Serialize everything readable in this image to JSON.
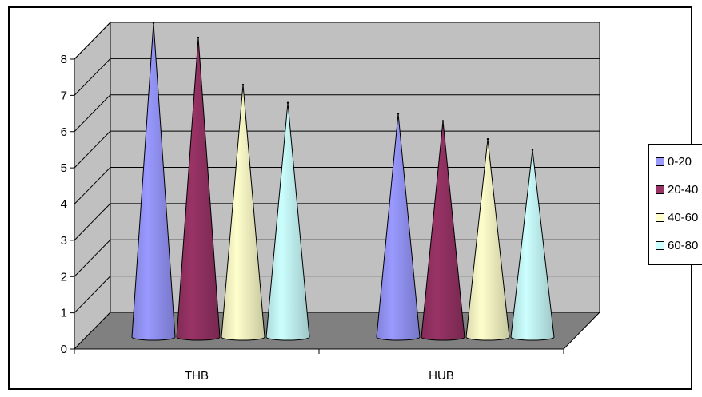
{
  "chart_data": {
    "type": "bar",
    "style": "3d-cone",
    "categories": [
      "THB",
      "HUB"
    ],
    "series": [
      {
        "name": "0-20",
        "values": [
          8.2,
          5.7
        ],
        "color": "#9999ff"
      },
      {
        "name": "20-40",
        "values": [
          7.8,
          5.5
        ],
        "color": "#993366"
      },
      {
        "name": "40-60",
        "values": [
          6.5,
          5.0
        ],
        "color": "#ffffcc"
      },
      {
        "name": "60-80",
        "values": [
          6.0,
          4.7
        ],
        "color": "#ccffff"
      }
    ],
    "ylim": [
      0,
      8
    ],
    "yticks": [
      "0",
      "1",
      "2",
      "3",
      "4",
      "5",
      "6",
      "7",
      "8"
    ],
    "grid": true,
    "legend": "right",
    "colors": {
      "wall": "#c0c0c0",
      "floor": "#808080",
      "grid": "#000000"
    }
  }
}
